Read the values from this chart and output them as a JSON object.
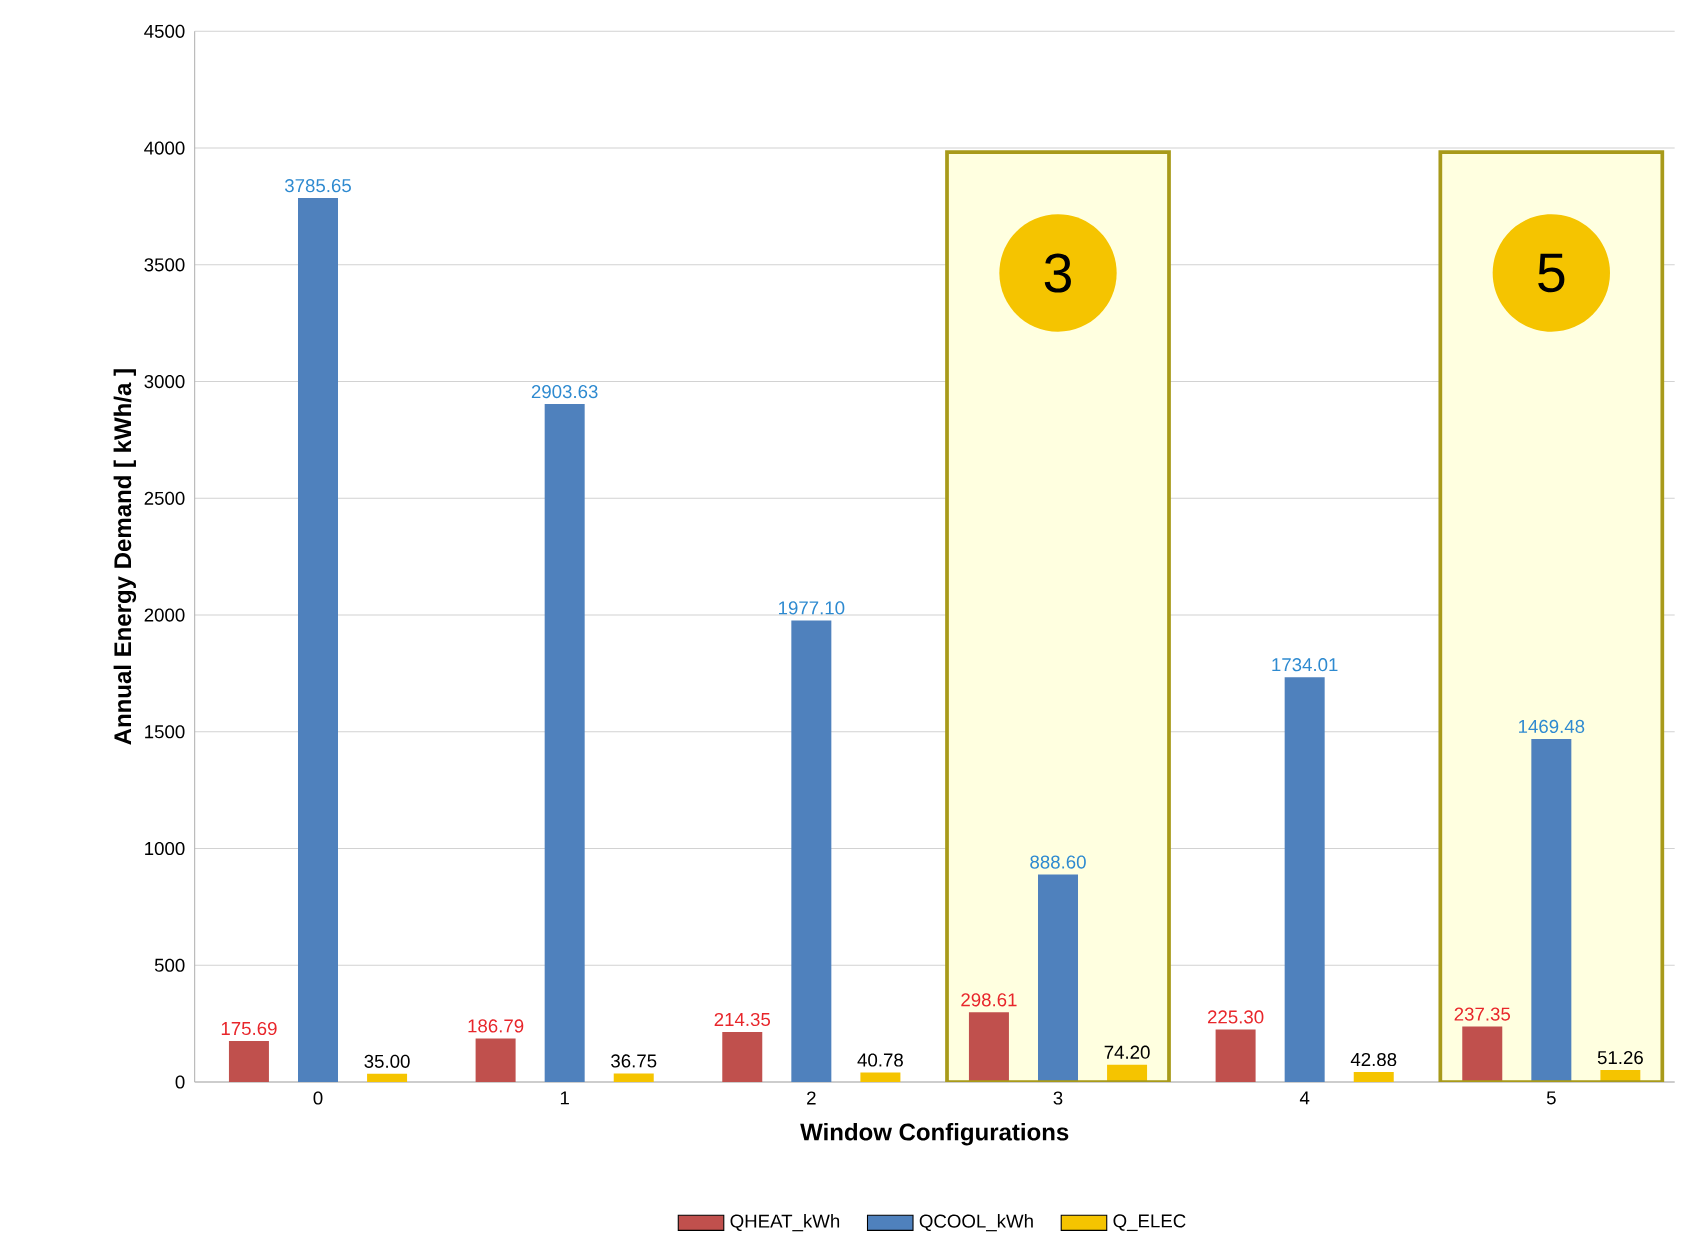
{
  "chart_data": {
    "type": "bar",
    "xlabel": "Window Configurations",
    "ylabel": "Annual Energy Demand [ kWh/a ]",
    "categories": [
      "0",
      "1",
      "2",
      "3",
      "4",
      "5"
    ],
    "series": [
      {
        "name": "QHEAT_kWh",
        "color": "#c0504d",
        "values": [
          175.69,
          186.79,
          214.35,
          298.61,
          225.3,
          237.35
        ],
        "value_labels": [
          "175.69",
          "186.79",
          "214.35",
          "298.61",
          "225.30",
          "237.35"
        ]
      },
      {
        "name": "QCOOL_kWh",
        "color": "#4f81bd",
        "values": [
          3785.65,
          2903.63,
          1977.1,
          888.6,
          1734.01,
          1469.48
        ],
        "value_labels": [
          "3785.65",
          "2903.63",
          "1977.10",
          "888.60",
          "1734.01",
          "1469.48"
        ]
      },
      {
        "name": "Q_ELEC",
        "color": "#f5c400",
        "values": [
          35.0,
          36.75,
          40.78,
          74.2,
          42.88,
          51.26
        ],
        "value_labels": [
          "35.00",
          "36.75",
          "40.78",
          "74.20",
          "42.88",
          "51.26"
        ]
      }
    ],
    "ylim": [
      0,
      4500
    ],
    "yticks": [
      0,
      500,
      1000,
      1500,
      2000,
      2500,
      3000,
      3500,
      4000,
      4500
    ],
    "grid": "y",
    "legend": "bottom",
    "bands": [
      {
        "axis": "x",
        "from": "3",
        "to": "3",
        "label": "3",
        "color": "#ffffe0"
      },
      {
        "axis": "x",
        "from": "5",
        "to": "5",
        "label": "5",
        "color": "#ffffe0"
      }
    ]
  }
}
